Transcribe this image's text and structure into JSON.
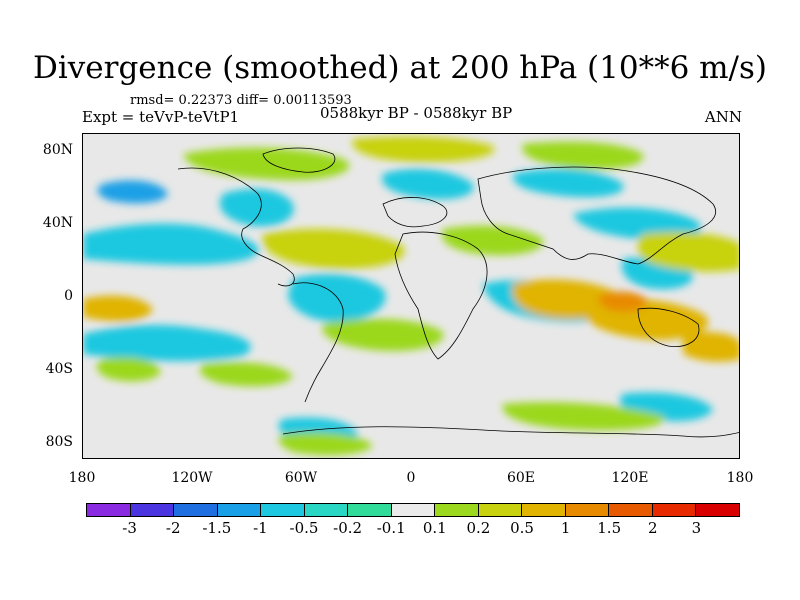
{
  "title": "Divergence (smoothed) at 200 hPa (10**6 m/s)",
  "stats": "rmsd= 0.22373 diff= 0.00113593",
  "expt": "Expt = teVvP-teVtP1",
  "period": "0588kyr BP - 0588kyr BP",
  "season": "ANN",
  "lat_labels": [
    "80N",
    "40N",
    "0",
    "40S",
    "80S"
  ],
  "lon_labels": [
    "180",
    "120W",
    "60W",
    "0",
    "60E",
    "120E",
    "180"
  ],
  "colorbar": {
    "labels": [
      "-3",
      "-2",
      "-1.5",
      "-1",
      "-0.5",
      "-0.2",
      "-0.1",
      "0.1",
      "0.2",
      "0.5",
      "1",
      "1.5",
      "2",
      "3"
    ],
    "colors": [
      "#8a2be2",
      "#4a35e0",
      "#1f6fe0",
      "#1aa0e6",
      "#1ec8e0",
      "#2ad6c4",
      "#31dc9a",
      "#ebebeb",
      "#9bd81e",
      "#c8d20e",
      "#e0b400",
      "#e88a00",
      "#e85a00",
      "#e82a00",
      "#d80000"
    ]
  }
}
